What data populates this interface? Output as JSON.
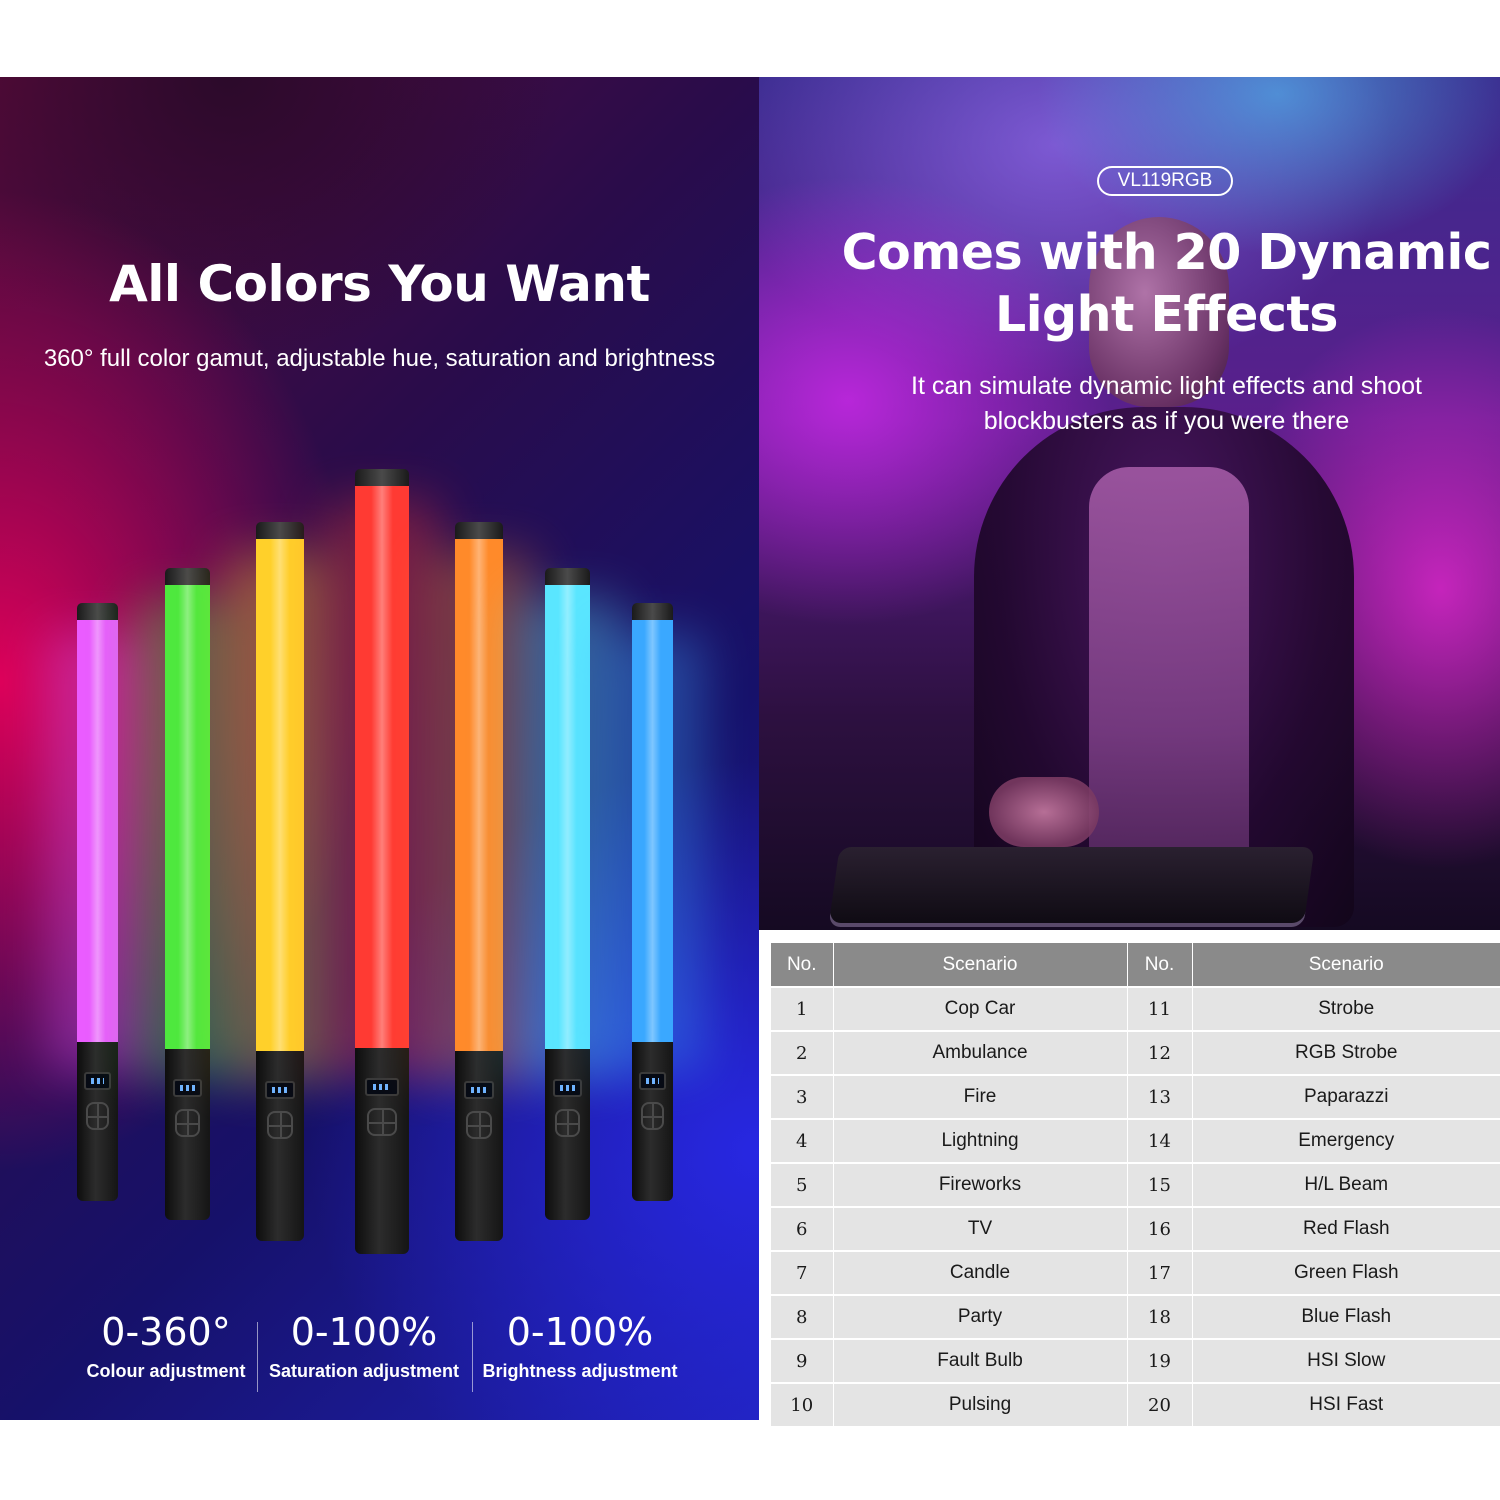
{
  "left": {
    "title": "All Colors You Want",
    "subtitle": "360° full color gamut, adjustable hue, saturation and brightness",
    "sticks": [
      {
        "color": "#ea5cff",
        "name": "magenta"
      },
      {
        "color": "#4ee83e",
        "name": "green"
      },
      {
        "color": "#ffd02a",
        "name": "yellow"
      },
      {
        "color": "#ff3a33",
        "name": "red"
      },
      {
        "color": "#ff8a2a",
        "name": "orange"
      },
      {
        "color": "#5ae6ff",
        "name": "cyan"
      },
      {
        "color": "#3aa8ff",
        "name": "blue"
      }
    ],
    "stats": [
      {
        "value": "0-360°",
        "label": "Colour adjustment"
      },
      {
        "value": "0-100%",
        "label": "Saturation adjustment"
      },
      {
        "value": "0-100%",
        "label": "Brightness adjustment"
      }
    ]
  },
  "right": {
    "badge": "VL119RGB",
    "title_line1": "Comes with 20 Dynamic",
    "title_line2": "Light Effects",
    "subtitle_line1": "It can simulate dynamic light effects and shoot",
    "subtitle_line2": "blockbusters as if you were there"
  },
  "table": {
    "headers": [
      "No.",
      "Scenario",
      "No.",
      "Scenario"
    ],
    "rows": [
      [
        "1",
        "Cop Car",
        "11",
        "Strobe"
      ],
      [
        "2",
        "Ambulance",
        "12",
        "RGB Strobe"
      ],
      [
        "3",
        "Fire",
        "13",
        "Paparazzi"
      ],
      [
        "4",
        "Lightning",
        "14",
        "Emergency"
      ],
      [
        "5",
        "Fireworks",
        "15",
        "H/L Beam"
      ],
      [
        "6",
        "TV",
        "16",
        "Red Flash"
      ],
      [
        "7",
        "Candle",
        "17",
        "Green Flash"
      ],
      [
        "8",
        "Party",
        "18",
        "Blue Flash"
      ],
      [
        "9",
        "Fault Bulb",
        "19",
        "HSI Slow"
      ],
      [
        "10",
        "Pulsing",
        "20",
        "HSI Fast"
      ]
    ]
  }
}
